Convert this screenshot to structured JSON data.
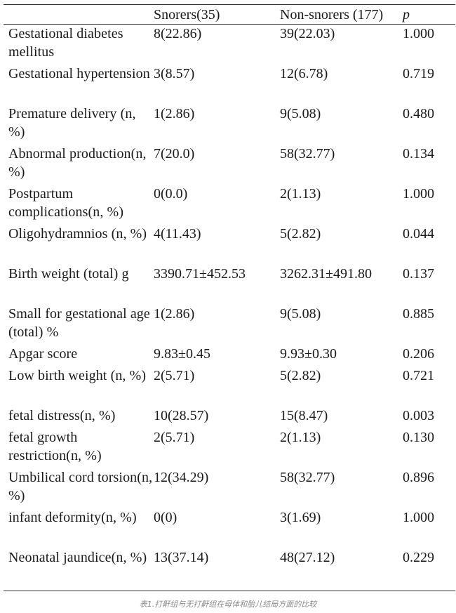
{
  "table": {
    "headers": {
      "label": "",
      "snorers": "Snorers(35)",
      "non_snorers": "Non-snorers (177)",
      "p": "p"
    },
    "rows": [
      {
        "label": "Gestational diabetes mellitus",
        "snorers": "8(22.86)",
        "non_snorers": "39(22.03)",
        "p": "1.000"
      },
      {
        "label": "Gestational hypertension",
        "snorers": "3(8.57)",
        "non_snorers": "12(6.78)",
        "p": "0.719"
      },
      {
        "label": "Premature delivery (n, %)",
        "snorers": "1(2.86)",
        "non_snorers": "9(5.08)",
        "p": "0.480"
      },
      {
        "label": "Abnormal production(n, %)",
        "snorers": "7(20.0)",
        "non_snorers": "58(32.77)",
        "p": "0.134"
      },
      {
        "label": "Postpartum complications(n, %)",
        "snorers": "0(0.0)",
        "non_snorers": "2(1.13)",
        "p": "1.000"
      },
      {
        "label": "Oligohydramnios (n, %)",
        "snorers": "4(11.43)",
        "non_snorers": "5(2.82)",
        "p": "0.044"
      },
      {
        "label": "Birth weight (total) g",
        "snorers": "3390.71±452.53",
        "non_snorers": "3262.31±491.80",
        "p": "0.137"
      },
      {
        "label": "Small for gestational age (total) %",
        "snorers": "1(2.86)",
        "non_snorers": "9(5.08)",
        "p": "0.885"
      },
      {
        "label": "Apgar score",
        "snorers": "9.83±0.45",
        "non_snorers": "9.93±0.30",
        "p": "0.206"
      },
      {
        "label": "Low birth weight (n, %)",
        "snorers": "2(5.71)",
        "non_snorers": "5(2.82)",
        "p": "0.721"
      },
      {
        "label": "fetal distress(n, %)",
        "snorers": "10(28.57)",
        "non_snorers": "15(8.47)",
        "p": "0.003"
      },
      {
        "label": "fetal growth restriction(n, %)",
        "snorers": "2(5.71)",
        "non_snorers": "2(1.13)",
        "p": "0.130"
      },
      {
        "label": "Umbilical cord torsion(n, %)",
        "snorers": "12(34.29)",
        "non_snorers": "58(32.77)",
        "p": "0.896"
      },
      {
        "label": "infant deformity(n, %)",
        "snorers": "0(0)",
        "non_snorers": "3(1.69)",
        "p": "1.000"
      },
      {
        "label": "Neonatal jaundice(n, %)",
        "snorers": "13(37.14)",
        "non_snorers": "48(27.12)",
        "p": "0.229"
      }
    ]
  },
  "caption": "表1.打鼾组与无打鼾组在母体和胎儿结局方面的比较"
}
